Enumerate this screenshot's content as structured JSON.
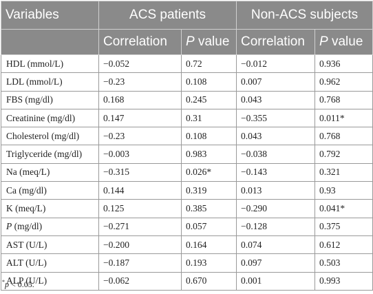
{
  "header": {
    "variables": "Variables",
    "group_acs": "ACS patients",
    "group_non_acs": "Non-ACS subjects",
    "correlation": "Correlation",
    "p_letter": "P",
    "p_rest": " value"
  },
  "rows": [
    {
      "variable": "HDL (mmol/L)",
      "acs_corr": "−0.052",
      "acs_p": "0.72",
      "non_corr": "−0.012",
      "non_p": "0.936"
    },
    {
      "variable": "LDL (mmol/L)",
      "acs_corr": "−0.23",
      "acs_p": "0.108",
      "non_corr": "0.007",
      "non_p": "0.962"
    },
    {
      "variable": "FBS (mg/dl)",
      "acs_corr": "0.168",
      "acs_p": "0.245",
      "non_corr": "0.043",
      "non_p": "0.768"
    },
    {
      "variable": "Creatinine (mg/dl)",
      "acs_corr": "0.147",
      "acs_p": "0.31",
      "non_corr": "−0.355",
      "non_p": "0.011*"
    },
    {
      "variable": "Cholesterol (mg/dl)",
      "acs_corr": "−0.23",
      "acs_p": "0.108",
      "non_corr": "0.043",
      "non_p": "0.768"
    },
    {
      "variable": "Triglyceride (mg/dl)",
      "acs_corr": "−0.003",
      "acs_p": "0.983",
      "non_corr": "−0.038",
      "non_p": "0.792"
    },
    {
      "variable": "Na (meq/L)",
      "acs_corr": "−0.315",
      "acs_p": "0.026*",
      "non_corr": "−0.143",
      "non_p": "0.321"
    },
    {
      "variable": "Ca (mg/dl)",
      "acs_corr": "0.144",
      "acs_p": "0.319",
      "non_corr": "0.013",
      "non_p": "0.93"
    },
    {
      "variable": "K (meq/L)",
      "acs_corr": "0.125",
      "acs_p": "0.385",
      "non_corr": "−0.290",
      "non_p": "0.041*"
    },
    {
      "variable_letter": "P",
      "variable_rest": " (mg/dl)",
      "acs_corr": "−0.271",
      "acs_p": "0.057",
      "non_corr": "−0.128",
      "non_p": "0.375"
    },
    {
      "variable": "AST (U/L)",
      "acs_corr": "−0.200",
      "acs_p": "0.164",
      "non_corr": "0.074",
      "non_p": "0.612"
    },
    {
      "variable": "ALT (U/L)",
      "acs_corr": "−0.187",
      "acs_p": "0.193",
      "non_corr": "0.097",
      "non_p": "0.503"
    },
    {
      "variable": "ALP (U/L)",
      "acs_corr": "−0.062",
      "acs_p": "0.670",
      "non_corr": "0.001",
      "non_p": "0.993"
    }
  ],
  "footnote": {
    "star": "*",
    "p": "p",
    "rest": " < 0.05."
  }
}
